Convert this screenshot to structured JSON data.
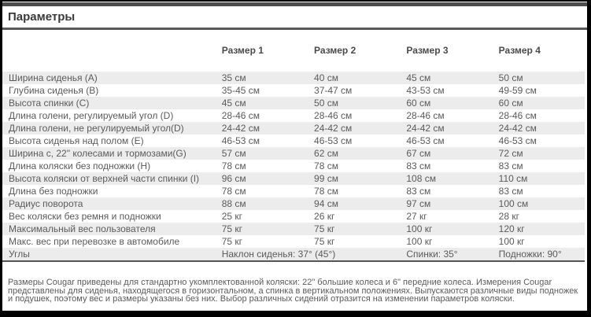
{
  "page": {
    "title": "Параметры"
  },
  "colors": {
    "frame": "#000000",
    "rule_dark": "#555555",
    "row_stripe": "#ececec",
    "text": "#5b5b5b",
    "title_text": "#3a3a3a"
  },
  "table": {
    "columns": [
      "",
      "Размер 1",
      "Размер 2",
      "Размер 3",
      "Размер 4"
    ],
    "rows": [
      {
        "label": "Ширина сиденья (A)",
        "values": [
          "35 см",
          "40 см",
          "45 см",
          "50 см"
        ]
      },
      {
        "label": "Глубина сиденья (B)",
        "values": [
          "35-45 см",
          "37-47 см",
          "43-53 см",
          "49-59 см"
        ]
      },
      {
        "label": "Высота спинки (C)",
        "values": [
          "45 см",
          "50 см",
          "60 см",
          "60 см"
        ]
      },
      {
        "label": "Длина голени, регулируемый угол (D)",
        "values": [
          "28-46 см",
          "28-46 см",
          "28-46 см",
          "28-46 см"
        ]
      },
      {
        "label": "Длина голени, не регулируемый угол(D)",
        "values": [
          "24-42 см",
          "24-42 см",
          "24-42 см",
          "24-42 см"
        ]
      },
      {
        "label": "Высота сиденья над полом (E)",
        "values": [
          "46-53 см",
          "46-53 см",
          "46-53 см",
          "46-53 см"
        ]
      },
      {
        "label": "Ширина с, 22\" колесами и тормозами(G)",
        "values": [
          "57 см",
          "62 см",
          "67 см",
          "72 см"
        ]
      },
      {
        "label": "Длина коляски без подножки (H)",
        "values": [
          "78 см",
          "78 см",
          "83 см",
          "83 см"
        ]
      },
      {
        "label": "Высота коляски от верхней части спинки (I)",
        "values": [
          "96 см",
          "99 см",
          "108 см",
          "110 см"
        ]
      },
      {
        "label": "Длина без подножки",
        "values": [
          "78 см",
          "78 см",
          "83 см",
          "83 см"
        ]
      },
      {
        "label": "Радиус поворота",
        "values": [
          "88 см",
          "94 см",
          "97 см",
          "100 см"
        ]
      },
      {
        "label": "Вес коляски без ремня и подножки",
        "values": [
          "25 кг",
          "26 кг",
          "27 кг",
          "28 кг"
        ]
      },
      {
        "label": "Максимальный вес пользователя",
        "values": [
          "75 кг",
          "75 кг",
          "100 кг",
          "120 кг"
        ]
      },
      {
        "label": "Макс. вес при перевозке в автомобиле",
        "values": [
          "75 кг",
          "75 кг",
          "100 кг",
          "100 кг"
        ]
      },
      {
        "label": "Углы",
        "values": [
          "Наклон сиденья: 37° (45°)",
          "",
          "Спинки: 35°",
          "Подножки: 90°"
        ]
      }
    ]
  },
  "footnote": {
    "text": "Размеры Cougar приведены для стандартно укомплектованной коляски: 22\" большие колеса и 6\" передние колеса. Измерения Cougar представлены для сиденья, находящегося в горизонтальном, а спинка в вертикальном положениях. Выпускаются различные виды подножек и подушек, поэтому вес и размеры указаны без них. Выбор различных сидений отразится на изменении параметров коляски."
  }
}
